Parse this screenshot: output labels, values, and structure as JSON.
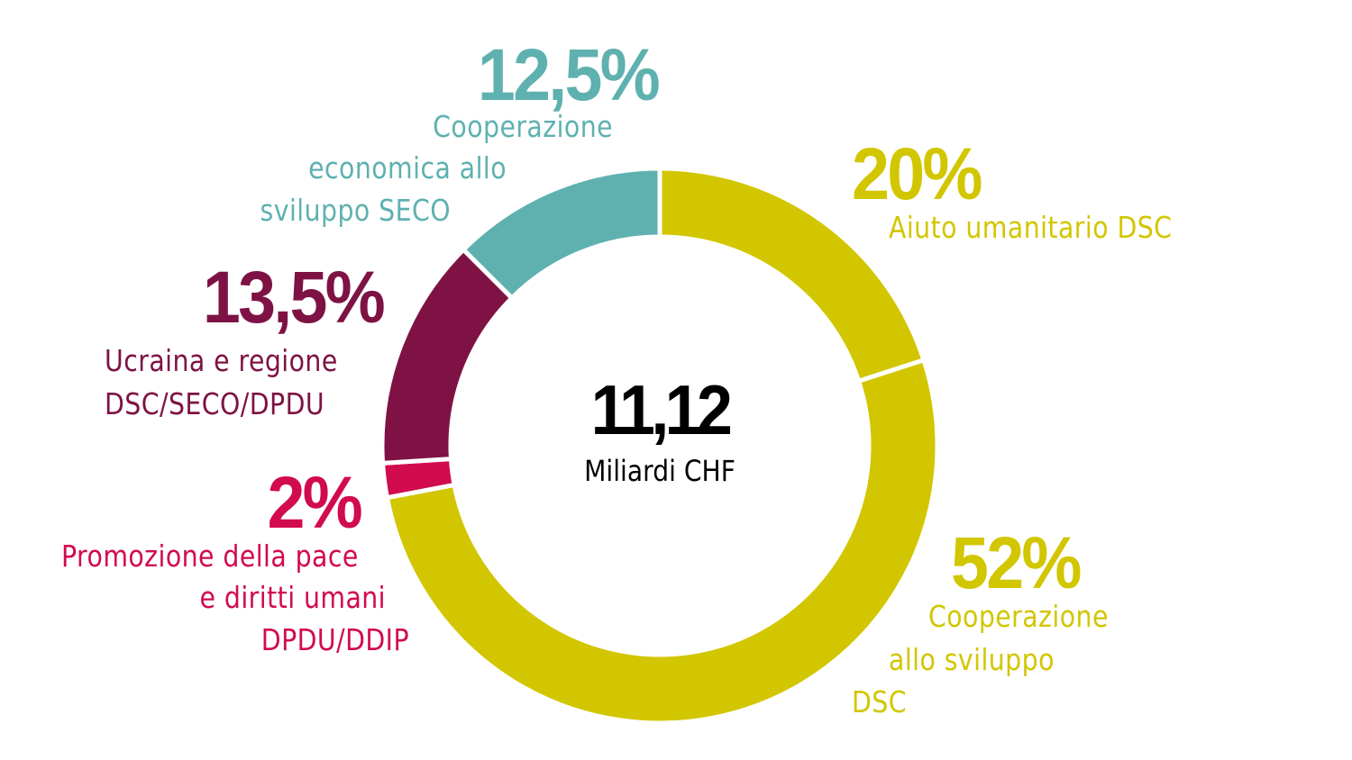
{
  "center": {
    "value": "11,12",
    "unit": "Miliardi CHF"
  },
  "segments": [
    {
      "id": "aiuto-umanitario",
      "percent_label": "20%",
      "lines": [
        "Aiuto umanitario DSC"
      ],
      "color": "#d2c600"
    },
    {
      "id": "cooperazione-sviluppo",
      "percent_label": "52%",
      "lines": [
        "Cooperazione",
        "allo sviluppo",
        "DSC"
      ],
      "color": "#d2c600"
    },
    {
      "id": "promozione-pace",
      "percent_label": "2%",
      "lines": [
        "Promozione della pace",
        "e diritti umani",
        "DPDU/DDIP"
      ],
      "color": "#d20a4e"
    },
    {
      "id": "ucraina",
      "percent_label": "13,5%",
      "lines": [
        "Ucraina e regione",
        "DSC/SECO/DPDU"
      ],
      "color": "#7e1244"
    },
    {
      "id": "seco",
      "percent_label": "12,5%",
      "lines": [
        "Cooperazione",
        "economica allo",
        "sviluppo SECO"
      ],
      "color": "#5fb1b0"
    }
  ],
  "chart_data": {
    "type": "pie",
    "variant": "donut",
    "title": "",
    "center_label": "11,12 Miliardi CHF",
    "total": 11.12,
    "unit": "Miliardi CHF",
    "categories": [
      "Aiuto umanitario DSC",
      "Cooperazione allo sviluppo DSC",
      "Promozione della pace e diritti umani DPDU/DDIP",
      "Ucraina e regione DSC/SECO/DPDU",
      "Cooperazione economica allo sviluppo SECO"
    ],
    "values": [
      20,
      52,
      2,
      13.5,
      12.5
    ],
    "colors": [
      "#d2c600",
      "#d2c600",
      "#d20a4e",
      "#7e1244",
      "#5fb1b0"
    ],
    "start_angle": "12 o'clock",
    "direction": "clockwise",
    "legend": "inline labels"
  }
}
